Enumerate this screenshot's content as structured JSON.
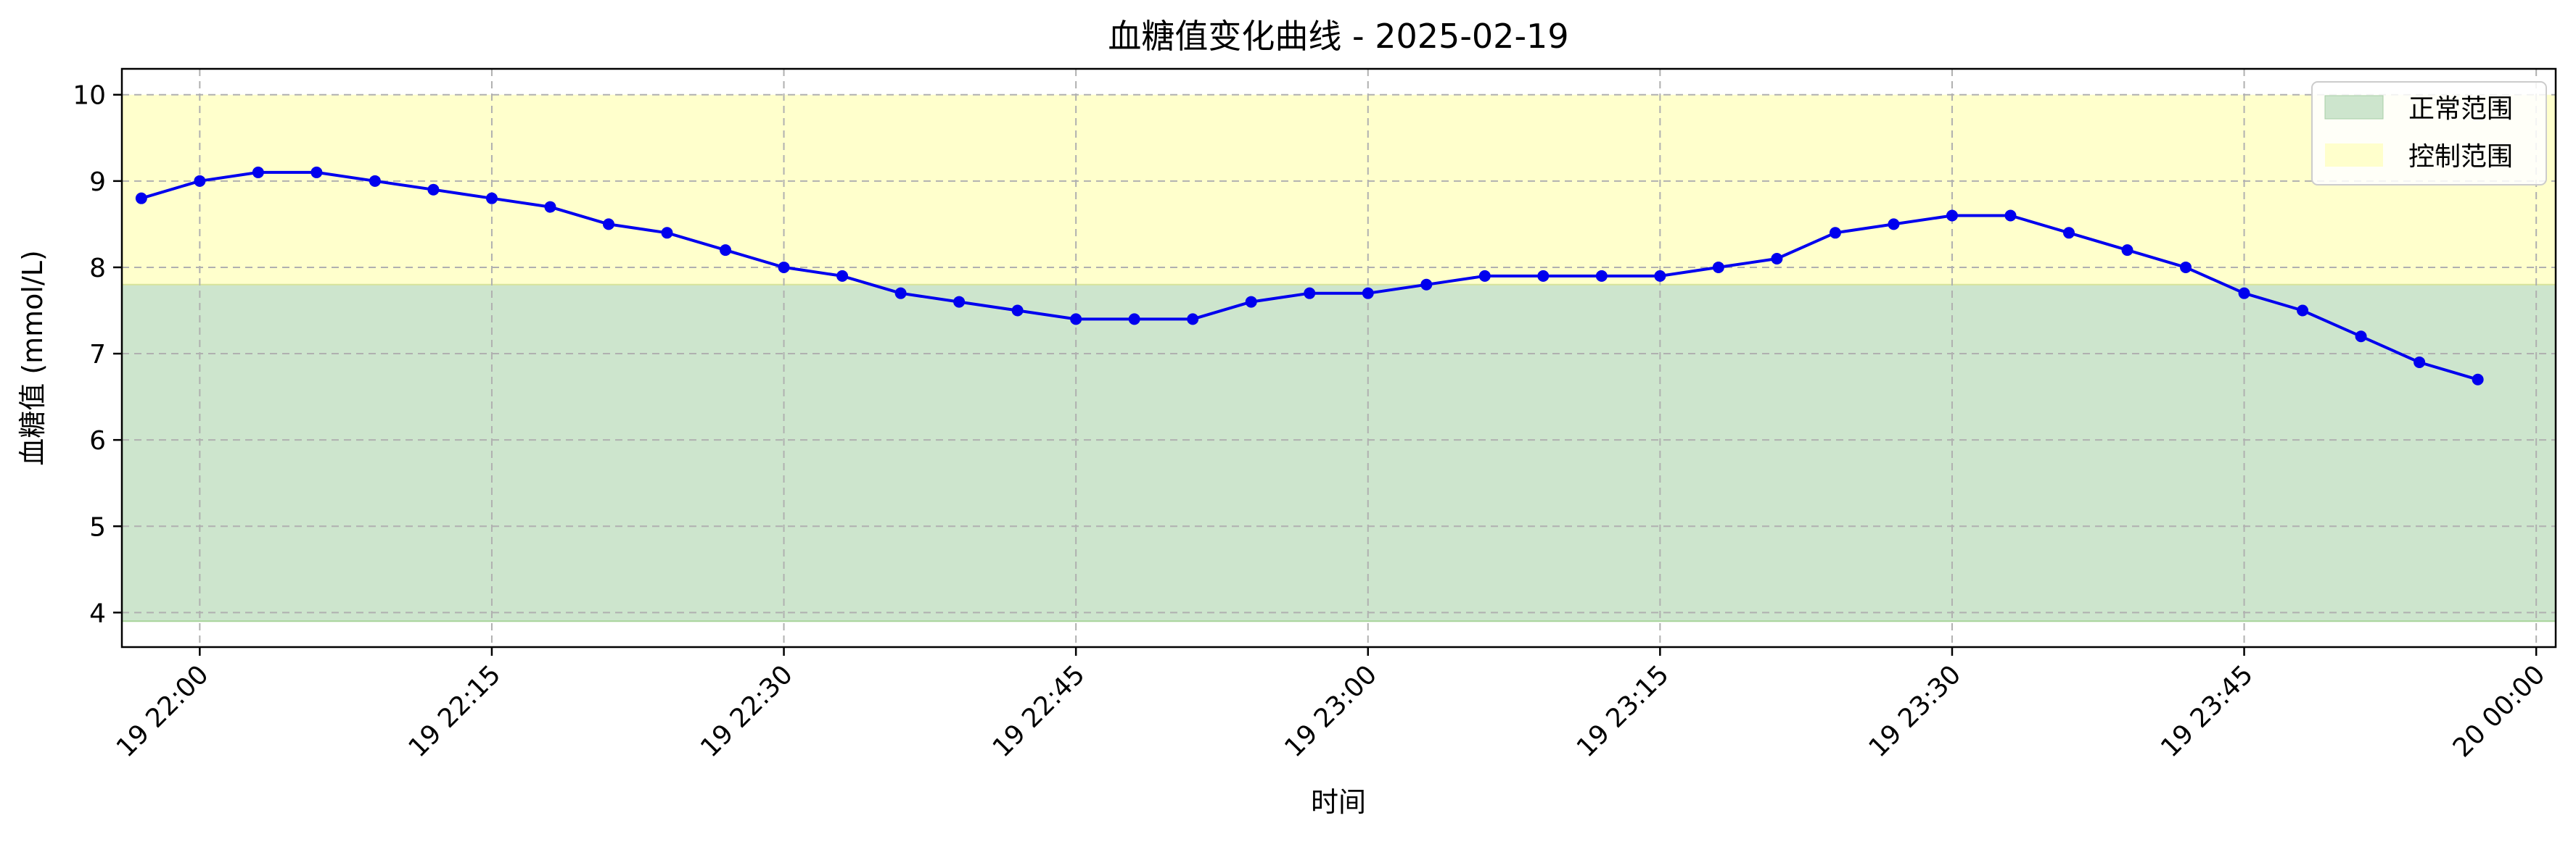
{
  "chart_data": {
    "type": "line",
    "title": "血糖值变化曲线 - 2025-02-19",
    "xlabel": "时间",
    "ylabel": "血糖值 (mmol/L)",
    "ylim": [
      3.6,
      10.3
    ],
    "yticks": [
      4,
      5,
      6,
      7,
      8,
      9,
      10
    ],
    "xlim": [
      "2025-02-19 21:56",
      "2025-02-20 00:01"
    ],
    "xticks": [
      {
        "t": "2025-02-19 22:00",
        "label": "19 22:00"
      },
      {
        "t": "2025-02-19 22:15",
        "label": "19 22:15"
      },
      {
        "t": "2025-02-19 22:30",
        "label": "19 22:30"
      },
      {
        "t": "2025-02-19 22:45",
        "label": "19 22:45"
      },
      {
        "t": "2025-02-19 23:00",
        "label": "19 23:00"
      },
      {
        "t": "2025-02-19 23:15",
        "label": "19 23:15"
      },
      {
        "t": "2025-02-19 23:30",
        "label": "19 23:30"
      },
      {
        "t": "2025-02-19 23:45",
        "label": "19 23:45"
      },
      {
        "t": "2025-02-20 00:00",
        "label": "20 00:00"
      }
    ],
    "grid": true,
    "legend_position": "top-right",
    "bands": [
      {
        "name": "正常范围",
        "from": 3.9,
        "to": 7.8,
        "color": "#cde5cd"
      },
      {
        "name": "控制范围",
        "from": 7.8,
        "to": 10.0,
        "color": "#ffffcc"
      }
    ],
    "series": [
      {
        "color": "#0000ee",
        "x": [
          "2025-02-19 21:57",
          "2025-02-19 22:00",
          "2025-02-19 22:03",
          "2025-02-19 22:06",
          "2025-02-19 22:09",
          "2025-02-19 22:12",
          "2025-02-19 22:15",
          "2025-02-19 22:18",
          "2025-02-19 22:21",
          "2025-02-19 22:24",
          "2025-02-19 22:27",
          "2025-02-19 22:30",
          "2025-02-19 22:33",
          "2025-02-19 22:36",
          "2025-02-19 22:39",
          "2025-02-19 22:42",
          "2025-02-19 22:45",
          "2025-02-19 22:48",
          "2025-02-19 22:51",
          "2025-02-19 22:54",
          "2025-02-19 22:57",
          "2025-02-19 23:00",
          "2025-02-19 23:03",
          "2025-02-19 23:06",
          "2025-02-19 23:09",
          "2025-02-19 23:12",
          "2025-02-19 23:15",
          "2025-02-19 23:18",
          "2025-02-19 23:21",
          "2025-02-19 23:24",
          "2025-02-19 23:27",
          "2025-02-19 23:30",
          "2025-02-19 23:33",
          "2025-02-19 23:36",
          "2025-02-19 23:39",
          "2025-02-19 23:42",
          "2025-02-19 23:45",
          "2025-02-19 23:48",
          "2025-02-19 23:51",
          "2025-02-19 23:54",
          "2025-02-19 23:57"
        ],
        "values": [
          8.8,
          9.0,
          9.1,
          9.1,
          9.0,
          8.9,
          8.8,
          8.7,
          8.5,
          8.4,
          8.2,
          8.0,
          7.9,
          7.7,
          7.6,
          7.5,
          7.4,
          7.4,
          7.4,
          7.6,
          7.7,
          7.7,
          7.8,
          7.9,
          7.9,
          7.9,
          7.9,
          8.0,
          8.1,
          8.4,
          8.5,
          8.6,
          8.6,
          8.4,
          8.2,
          8.0,
          7.7,
          7.5,
          7.2,
          6.9,
          6.7
        ]
      }
    ]
  }
}
